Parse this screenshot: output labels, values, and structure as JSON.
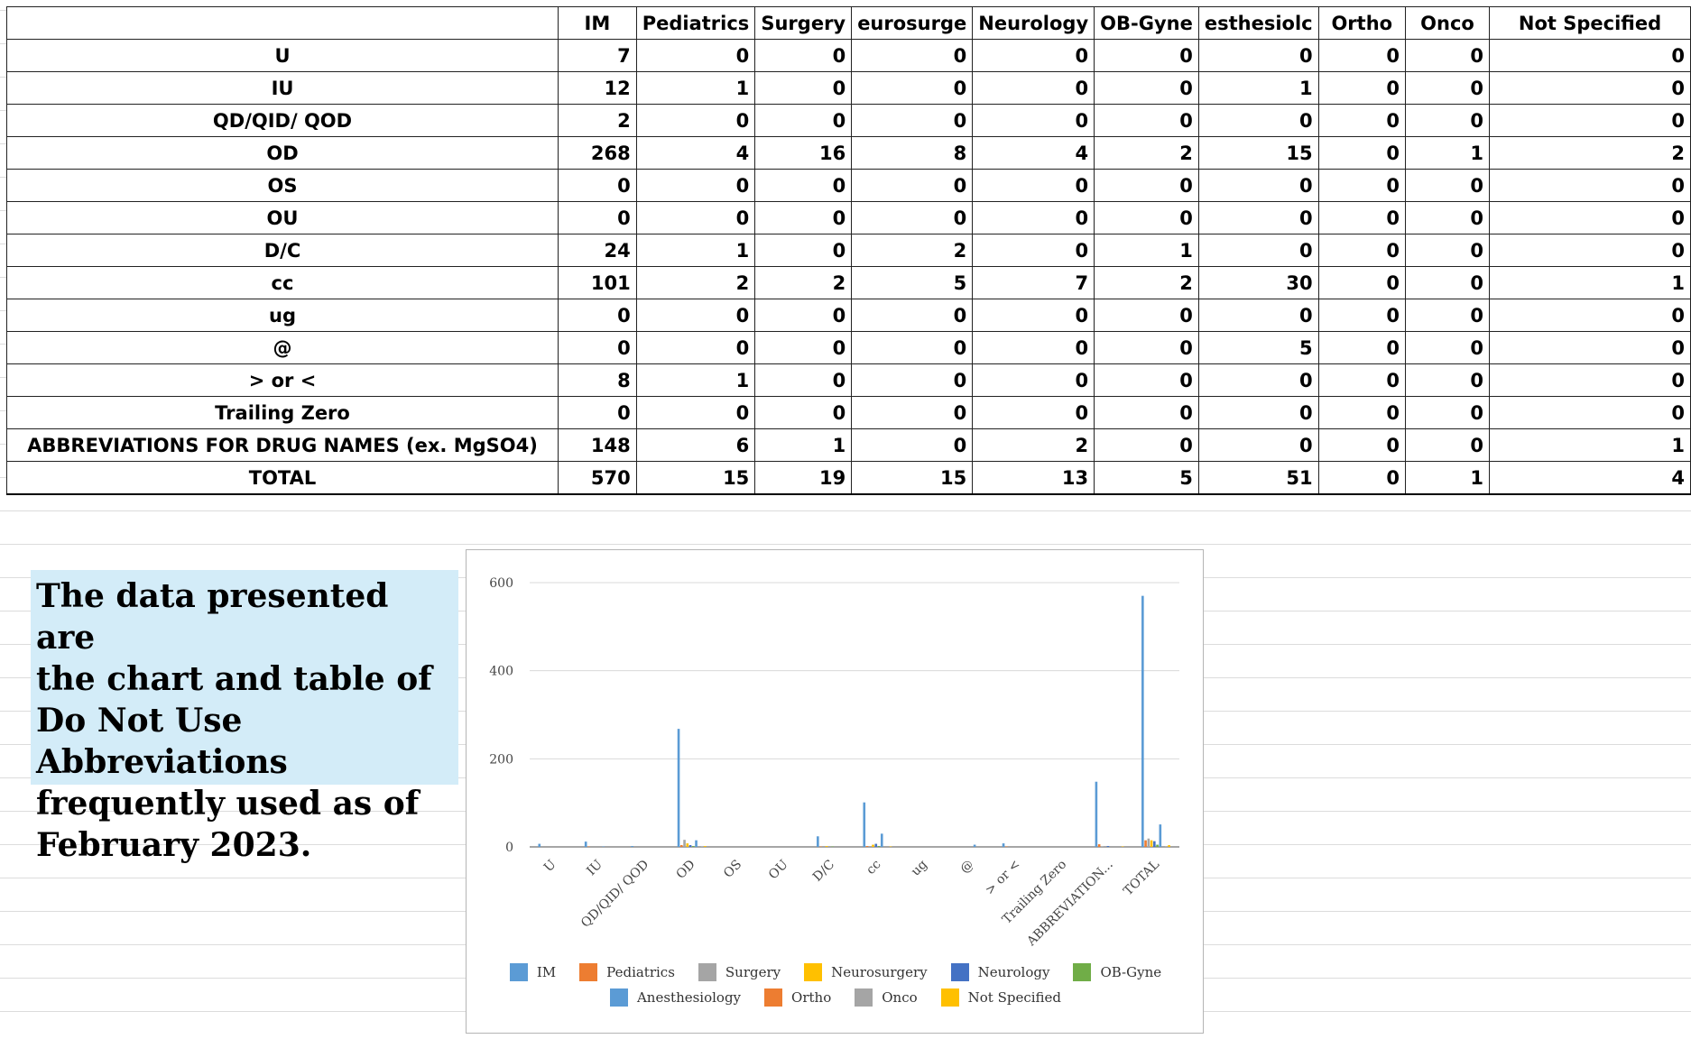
{
  "table": {
    "headers": [
      "",
      "IM",
      "Pediatrics",
      "Surgery",
      "eurosurge",
      "Neurology",
      "OB-Gyne",
      "esthesiolc",
      "Ortho",
      "Onco",
      "Not Specified"
    ],
    "rows": [
      {
        "label": "U",
        "values": [
          "7",
          "0",
          "0",
          "0",
          "0",
          "0",
          "0",
          "0",
          "0",
          "0"
        ]
      },
      {
        "label": "IU",
        "values": [
          "12",
          "1",
          "0",
          "0",
          "0",
          "0",
          "1",
          "0",
          "0",
          "0"
        ]
      },
      {
        "label": "QD/QID/ QOD",
        "values": [
          "2",
          "0",
          "0",
          "0",
          "0",
          "0",
          "0",
          "0",
          "0",
          "0"
        ]
      },
      {
        "label": "OD",
        "values": [
          "268",
          "4",
          "16",
          "8",
          "4",
          "2",
          "15",
          "0",
          "1",
          "2"
        ]
      },
      {
        "label": "OS",
        "values": [
          "0",
          "0",
          "0",
          "0",
          "0",
          "0",
          "0",
          "0",
          "0",
          "0"
        ]
      },
      {
        "label": "OU",
        "values": [
          "0",
          "0",
          "0",
          "0",
          "0",
          "0",
          "0",
          "0",
          "0",
          "0"
        ]
      },
      {
        "label": "D/C",
        "values": [
          "24",
          "1",
          "0",
          "2",
          "0",
          "1",
          "0",
          "0",
          "0",
          "0"
        ]
      },
      {
        "label": "cc",
        "values": [
          "101",
          "2",
          "2",
          "5",
          "7",
          "2",
          "30",
          "0",
          "0",
          "1"
        ]
      },
      {
        "label": "ug",
        "values": [
          "0",
          "0",
          "0",
          "0",
          "0",
          "0",
          "0",
          "0",
          "0",
          "0"
        ]
      },
      {
        "label": "@",
        "values": [
          "0",
          "0",
          "0",
          "0",
          "0",
          "0",
          "5",
          "0",
          "0",
          "0"
        ]
      },
      {
        "label": "> or <",
        "values": [
          "8",
          "1",
          "0",
          "0",
          "0",
          "0",
          "0",
          "0",
          "0",
          "0"
        ]
      },
      {
        "label": "Trailing Zero",
        "values": [
          "0",
          "0",
          "0",
          "0",
          "0",
          "0",
          "0",
          "0",
          "0",
          "0"
        ]
      },
      {
        "label": "ABBREVIATIONS FOR DRUG NAMES (ex. MgSO4)",
        "values": [
          "148",
          "6",
          "1",
          "0",
          "2",
          "0",
          "0",
          "0",
          "0",
          "1"
        ]
      },
      {
        "label": "TOTAL",
        "values": [
          "570",
          "15",
          "19",
          "15",
          "13",
          "5",
          "51",
          "0",
          "1",
          "4"
        ]
      }
    ]
  },
  "note": {
    "lines": [
      "The data presented are",
      "the chart and table of",
      "Do Not Use Abbreviations",
      "frequently used as of",
      "February 2023."
    ]
  },
  "chart_data": {
    "type": "bar",
    "title": "",
    "xlabel": "",
    "ylabel": "",
    "ylim": [
      0,
      600
    ],
    "yticks": [
      0,
      200,
      400,
      600
    ],
    "grid": true,
    "legend_position": "bottom",
    "categories": [
      "U",
      "IU",
      "QD/QID/ QOD",
      "OD",
      "OS",
      "OU",
      "D/C",
      "cc",
      "ug",
      "@",
      "> or <",
      "Trailing Zero",
      "ABBREVIATION...",
      "TOTAL"
    ],
    "series": [
      {
        "name": "IM",
        "color": "#5b9bd5",
        "values": [
          7,
          12,
          2,
          268,
          0,
          0,
          24,
          101,
          0,
          0,
          8,
          0,
          148,
          570
        ]
      },
      {
        "name": "Pediatrics",
        "color": "#ed7d31",
        "values": [
          0,
          1,
          0,
          4,
          0,
          0,
          1,
          2,
          0,
          0,
          1,
          0,
          6,
          15
        ]
      },
      {
        "name": "Surgery",
        "color": "#a5a5a5",
        "values": [
          0,
          0,
          0,
          16,
          0,
          0,
          0,
          2,
          0,
          0,
          0,
          0,
          1,
          19
        ]
      },
      {
        "name": "Neurosurgery",
        "color": "#ffc000",
        "values": [
          0,
          0,
          0,
          8,
          0,
          0,
          2,
          5,
          0,
          0,
          0,
          0,
          0,
          15
        ]
      },
      {
        "name": "Neurology",
        "color": "#4472c4",
        "values": [
          0,
          0,
          0,
          4,
          0,
          0,
          0,
          7,
          0,
          0,
          0,
          0,
          2,
          13
        ]
      },
      {
        "name": "OB-Gyne",
        "color": "#70ad47",
        "values": [
          0,
          0,
          0,
          2,
          0,
          0,
          1,
          2,
          0,
          0,
          0,
          0,
          0,
          5
        ]
      },
      {
        "name": "Anesthesiology",
        "color": "#5b9bd5",
        "values": [
          0,
          1,
          0,
          15,
          0,
          0,
          0,
          30,
          0,
          5,
          0,
          0,
          0,
          51
        ]
      },
      {
        "name": "Ortho",
        "color": "#ed7d31",
        "values": [
          0,
          0,
          0,
          0,
          0,
          0,
          0,
          0,
          0,
          0,
          0,
          0,
          0,
          0
        ]
      },
      {
        "name": "Onco",
        "color": "#a5a5a5",
        "values": [
          0,
          0,
          0,
          1,
          0,
          0,
          0,
          0,
          0,
          0,
          0,
          0,
          0,
          1
        ]
      },
      {
        "name": "Not Specified",
        "color": "#ffc000",
        "values": [
          0,
          0,
          0,
          2,
          0,
          0,
          0,
          1,
          0,
          0,
          0,
          0,
          1,
          4
        ]
      }
    ]
  }
}
